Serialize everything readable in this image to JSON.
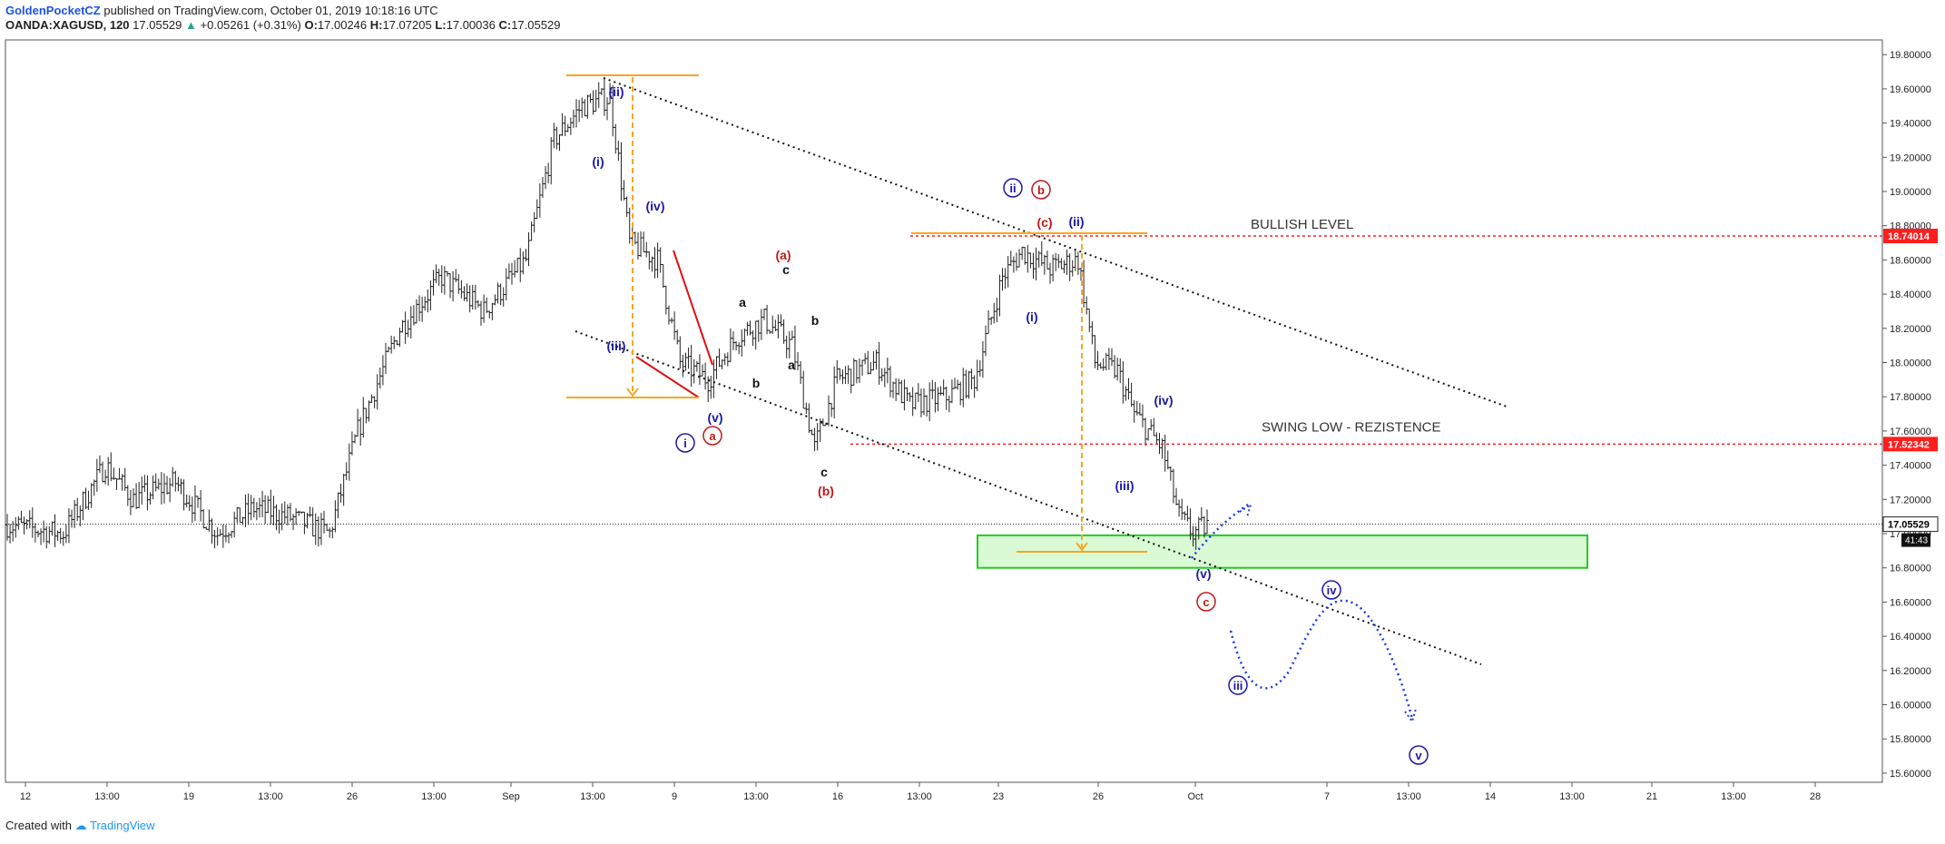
{
  "header": {
    "publisher": "GoldenPocketCZ",
    "published_text": "published on TradingView.com, October 01, 2019 10:18:16 UTC",
    "symbol": "OANDA:XAGUSD, 120",
    "last": "17.05529",
    "change_arrow": "▲",
    "change": "+0.05261 (+0.31%)",
    "o_label": "O:",
    "o_value": "17.00246",
    "h_label": "H:",
    "h_value": "17.07205",
    "l_label": "L:",
    "l_value": "17.00036",
    "c_label": "C:",
    "c_value": "17.05529"
  },
  "footer": {
    "created_with": "Created with",
    "brand": "TradingView"
  },
  "colors": {
    "up": "#26a69a",
    "red_level": "#ff1e1e",
    "orange": "#f5a623",
    "wave_blue": "#1a1aa6",
    "wave_red": "#c01818",
    "zone_green": "#b9f5b0"
  },
  "chart_data": {
    "type": "ohlc",
    "title": "",
    "xlabel": "",
    "ylabel": "",
    "ylim": [
      15.5,
      19.9
    ],
    "y_ticks": [
      "19.80000",
      "19.60000",
      "19.40000",
      "19.20000",
      "19.00000",
      "18.80000",
      "18.60000",
      "18.40000",
      "18.20000",
      "18.00000",
      "17.80000",
      "17.60000",
      "17.40000",
      "17.20000",
      "17.00000",
      "16.80000",
      "16.60000",
      "16.40000",
      "16.20000",
      "16.00000",
      "15.80000",
      "15.60000"
    ],
    "x_ticks": [
      "12",
      "13:00",
      "19",
      "13:00",
      "26",
      "13:00",
      "Sep",
      "13:00",
      "9",
      "13:00",
      "16",
      "13:00",
      "23",
      "26",
      "Oct",
      "7",
      "13:00",
      "14",
      "13:00",
      "21",
      "13:00",
      "28"
    ],
    "price_anchors": [
      {
        "i": 0,
        "p": 17.05
      },
      {
        "i": 20,
        "p": 17.0
      },
      {
        "i": 35,
        "p": 17.4
      },
      {
        "i": 45,
        "p": 17.2
      },
      {
        "i": 60,
        "p": 17.3
      },
      {
        "i": 75,
        "p": 17.0
      },
      {
        "i": 88,
        "p": 17.15
      },
      {
        "i": 100,
        "p": 17.1
      },
      {
        "i": 115,
        "p": 17.0
      },
      {
        "i": 125,
        "p": 17.6
      },
      {
        "i": 140,
        "p": 18.2
      },
      {
        "i": 155,
        "p": 18.5
      },
      {
        "i": 170,
        "p": 18.3
      },
      {
        "i": 185,
        "p": 18.6
      },
      {
        "i": 195,
        "p": 19.3
      },
      {
        "i": 205,
        "p": 19.5
      },
      {
        "i": 215,
        "p": 19.55
      },
      {
        "i": 222,
        "p": 18.7
      },
      {
        "i": 232,
        "p": 18.6
      },
      {
        "i": 240,
        "p": 18.0
      },
      {
        "i": 250,
        "p": 17.9
      },
      {
        "i": 260,
        "p": 18.15
      },
      {
        "i": 270,
        "p": 18.25
      },
      {
        "i": 280,
        "p": 18.1
      },
      {
        "i": 288,
        "p": 17.5
      },
      {
        "i": 296,
        "p": 17.9
      },
      {
        "i": 310,
        "p": 18.0
      },
      {
        "i": 322,
        "p": 17.75
      },
      {
        "i": 335,
        "p": 17.8
      },
      {
        "i": 345,
        "p": 17.9
      },
      {
        "i": 355,
        "p": 18.5
      },
      {
        "i": 362,
        "p": 18.65
      },
      {
        "i": 372,
        "p": 18.55
      },
      {
        "i": 382,
        "p": 18.6
      },
      {
        "i": 388,
        "p": 18.0
      },
      {
        "i": 396,
        "p": 17.95
      },
      {
        "i": 402,
        "p": 17.7
      },
      {
        "i": 412,
        "p": 17.5
      },
      {
        "i": 418,
        "p": 17.1
      },
      {
        "i": 423,
        "p": 17.0
      },
      {
        "i": 428,
        "p": 17.05
      }
    ],
    "levels": [
      {
        "name": "BULLISH LEVEL",
        "value": 18.74014,
        "tag": "18.74014"
      },
      {
        "name": "SWING LOW - REZISTENCE",
        "value": 17.52342,
        "tag": "17.52342"
      }
    ],
    "current_price": {
      "value": 17.05529,
      "tag": "17.05529",
      "countdown": "41:43"
    },
    "support_zone": [
      16.8,
      16.99
    ],
    "annotations": {
      "wave_blue_paren": [
        "(ii)",
        "(i)",
        "(iv)",
        "(iii)",
        "(v)",
        "(ii)",
        "(i)",
        "(iv)",
        "(iii)",
        "(v)"
      ],
      "wave_blue_circle": [
        "i",
        "ii",
        "iii",
        "iv",
        "v"
      ],
      "wave_red_paren": [
        "(a)",
        "(b)",
        "(c)"
      ],
      "wave_red_circle": [
        "a",
        "b",
        "c"
      ],
      "wave_black": [
        "c",
        "a",
        "b",
        "a",
        "b",
        "c"
      ]
    }
  }
}
